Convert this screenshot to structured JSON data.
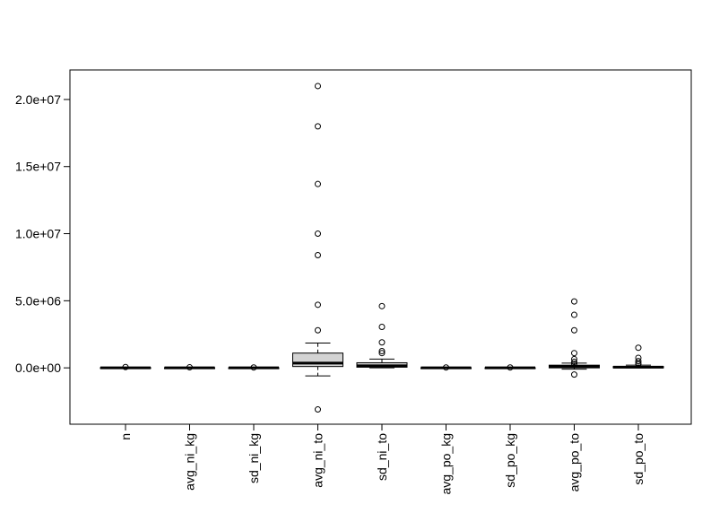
{
  "chart_data": {
    "type": "boxplot",
    "title": "",
    "xlabel": "",
    "ylabel": "",
    "ylim": [
      -4200000,
      22200000
    ],
    "y_ticks": [
      {
        "value": 0,
        "label": "0.0e+00"
      },
      {
        "value": 5000000,
        "label": "5.0e+06"
      },
      {
        "value": 10000000,
        "label": "1.0e+07"
      },
      {
        "value": 15000000,
        "label": "1.5e+07"
      },
      {
        "value": 20000000,
        "label": "2.0e+07"
      }
    ],
    "grid": false,
    "legend": "none",
    "categories": [
      "n",
      "avg_ni_kg",
      "sd_ni_kg",
      "avg_ni_to",
      "sd_ni_to",
      "avg_po_kg",
      "sd_po_kg",
      "avg_po_to",
      "sd_po_to"
    ],
    "boxes": [
      {
        "name": "n",
        "whisker_low": 0,
        "q1": 0,
        "median": 0,
        "q3": 20000,
        "whisker_high": 30000,
        "outliers": [
          60000
        ]
      },
      {
        "name": "avg_ni_kg",
        "whisker_low": 0,
        "q1": 0,
        "median": 0,
        "q3": 10000,
        "whisker_high": 20000,
        "outliers": [
          40000
        ]
      },
      {
        "name": "sd_ni_kg",
        "whisker_low": 0,
        "q1": 0,
        "median": 0,
        "q3": 10000,
        "whisker_high": 20000,
        "outliers": [
          30000
        ]
      },
      {
        "name": "avg_ni_to",
        "whisker_low": -600000,
        "q1": 100000,
        "median": 350000,
        "q3": 1100000,
        "whisker_high": 1850000,
        "outliers": [
          21000000,
          18000000,
          13700000,
          10000000,
          8400000,
          4700000,
          2800000,
          -3100000
        ]
      },
      {
        "name": "sd_ni_to",
        "whisker_low": 0,
        "q1": 50000,
        "median": 150000,
        "q3": 380000,
        "whisker_high": 650000,
        "outliers": [
          4600000,
          3050000,
          1900000,
          1250000,
          1100000
        ]
      },
      {
        "name": "avg_po_kg",
        "whisker_low": 0,
        "q1": 0,
        "median": 0,
        "q3": 10000,
        "whisker_high": 20000,
        "outliers": [
          30000
        ]
      },
      {
        "name": "sd_po_kg",
        "whisker_low": 0,
        "q1": 0,
        "median": 0,
        "q3": 10000,
        "whisker_high": 20000,
        "outliers": [
          30000
        ]
      },
      {
        "name": "avg_po_to",
        "whisker_low": -100000,
        "q1": 0,
        "median": 100000,
        "q3": 200000,
        "whisker_high": 350000,
        "outliers": [
          4950000,
          3950000,
          2800000,
          1100000,
          650000,
          450000,
          300000,
          -500000
        ]
      },
      {
        "name": "sd_po_to",
        "whisker_low": 0,
        "q1": 0,
        "median": 50000,
        "q3": 100000,
        "whisker_high": 200000,
        "outliers": [
          1500000,
          750000,
          500000,
          350000,
          250000
        ]
      }
    ],
    "colors": {
      "box_fill": "#d3d3d3",
      "stroke": "#000000",
      "background": "#ffffff"
    }
  }
}
